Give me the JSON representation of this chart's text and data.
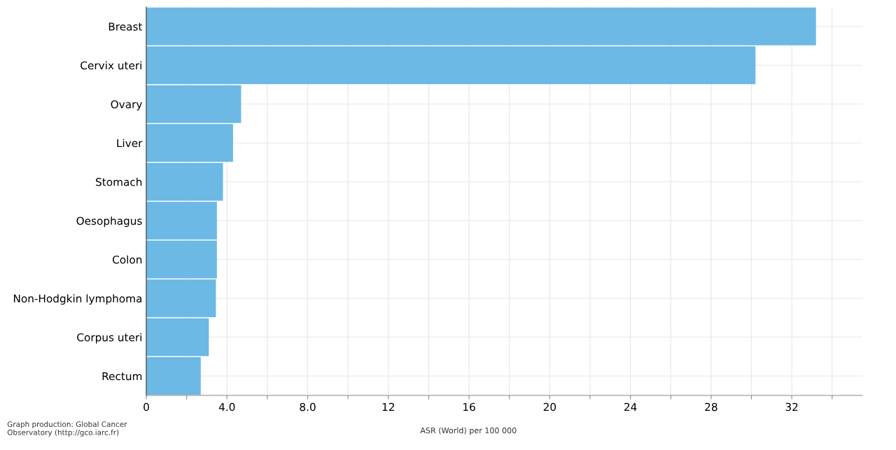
{
  "chart_data": {
    "type": "bar",
    "orientation": "horizontal",
    "xlabel": "ASR (World) per 100 000",
    "categories": [
      "Breast",
      "Cervix uteri",
      "Ovary",
      "Liver",
      "Stomach",
      "Oesophagus",
      "Colon",
      "Non-Hodgkin lymphoma",
      "Corpus uteri",
      "Rectum"
    ],
    "values": [
      33.2,
      30.2,
      4.7,
      4.3,
      3.8,
      3.5,
      3.5,
      3.45,
      3.1,
      2.7
    ],
    "color": "#6bb9e4",
    "xlim": [
      0,
      35.5
    ],
    "xticks": [
      0,
      {
        "value": 2,
        "label": null
      },
      {
        "value": 4,
        "label": "4.0"
      },
      {
        "value": 6,
        "label": null
      },
      {
        "value": 8,
        "label": "8.0"
      },
      {
        "value": 10,
        "label": null
      },
      12,
      {
        "value": 14,
        "label": null
      },
      16,
      {
        "value": 18,
        "label": null
      },
      20,
      {
        "value": 22,
        "label": null
      },
      24,
      {
        "value": 26,
        "label": null
      },
      28,
      {
        "value": 30,
        "label": null
      },
      32,
      {
        "value": 34,
        "label": null
      }
    ],
    "grid": true,
    "annotations": [
      "Graph production: Global Cancer\nObservatory (http://gco.iarc.fr)"
    ]
  }
}
